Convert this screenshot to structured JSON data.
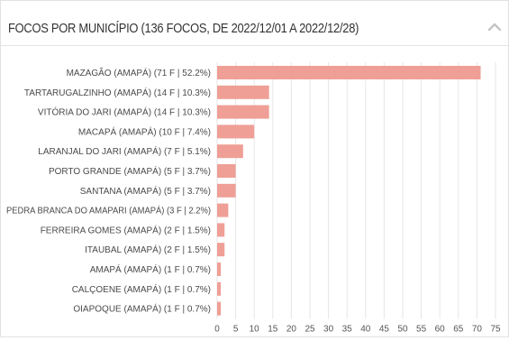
{
  "panel": {
    "title": "FOCOS POR MUNICÍPIO (136 FOCOS, DE 2022/12/01 A 2022/12/28)",
    "collapse_icon": "chevron-up-icon"
  },
  "colors": {
    "bar": "#ef9f96",
    "grid": "#e6e6e6",
    "label": "#4a4a4a",
    "axis": "#555555"
  },
  "chart_data": {
    "type": "bar",
    "orientation": "horizontal",
    "categories": [
      "MAZAGÃO (AMAPÁ) (71 F | 52.2%)",
      "TARTARUGALZINHO (AMAPÁ) (14 F | 10.3%)",
      "VITÓRIA DO JARI (AMAPÁ) (14 F | 10.3%)",
      "MACAPÁ (AMAPÁ) (10 F | 7.4%)",
      "LARANJAL DO JARI (AMAPÁ) (7 F | 5.1%)",
      "PORTO GRANDE (AMAPÁ) (5 F | 3.7%)",
      "SANTANA (AMAPÁ) (5 F | 3.7%)",
      "PEDRA BRANCA DO AMAPARI (AMAPÁ) (3 F | 2.2%)",
      "FERREIRA GOMES (AMAPÁ) (2 F | 1.5%)",
      "ITAUBAL (AMAPÁ) (2 F | 1.5%)",
      "AMAPÁ (AMAPÁ) (1 F | 0.7%)",
      "CALÇOENE (AMAPÁ) (1 F | 0.7%)",
      "OIAPOQUE (AMAPÁ) (1 F | 0.7%)"
    ],
    "values": [
      71,
      14,
      14,
      10,
      7,
      5,
      5,
      3,
      2,
      2,
      1,
      1,
      1
    ],
    "xlim": [
      0,
      75
    ],
    "xticks": [
      "0",
      "5",
      "10",
      "15",
      "20",
      "25",
      "30",
      "35",
      "40",
      "45",
      "50",
      "55",
      "60",
      "65",
      "70",
      "75"
    ],
    "grid": true,
    "legend": false
  }
}
